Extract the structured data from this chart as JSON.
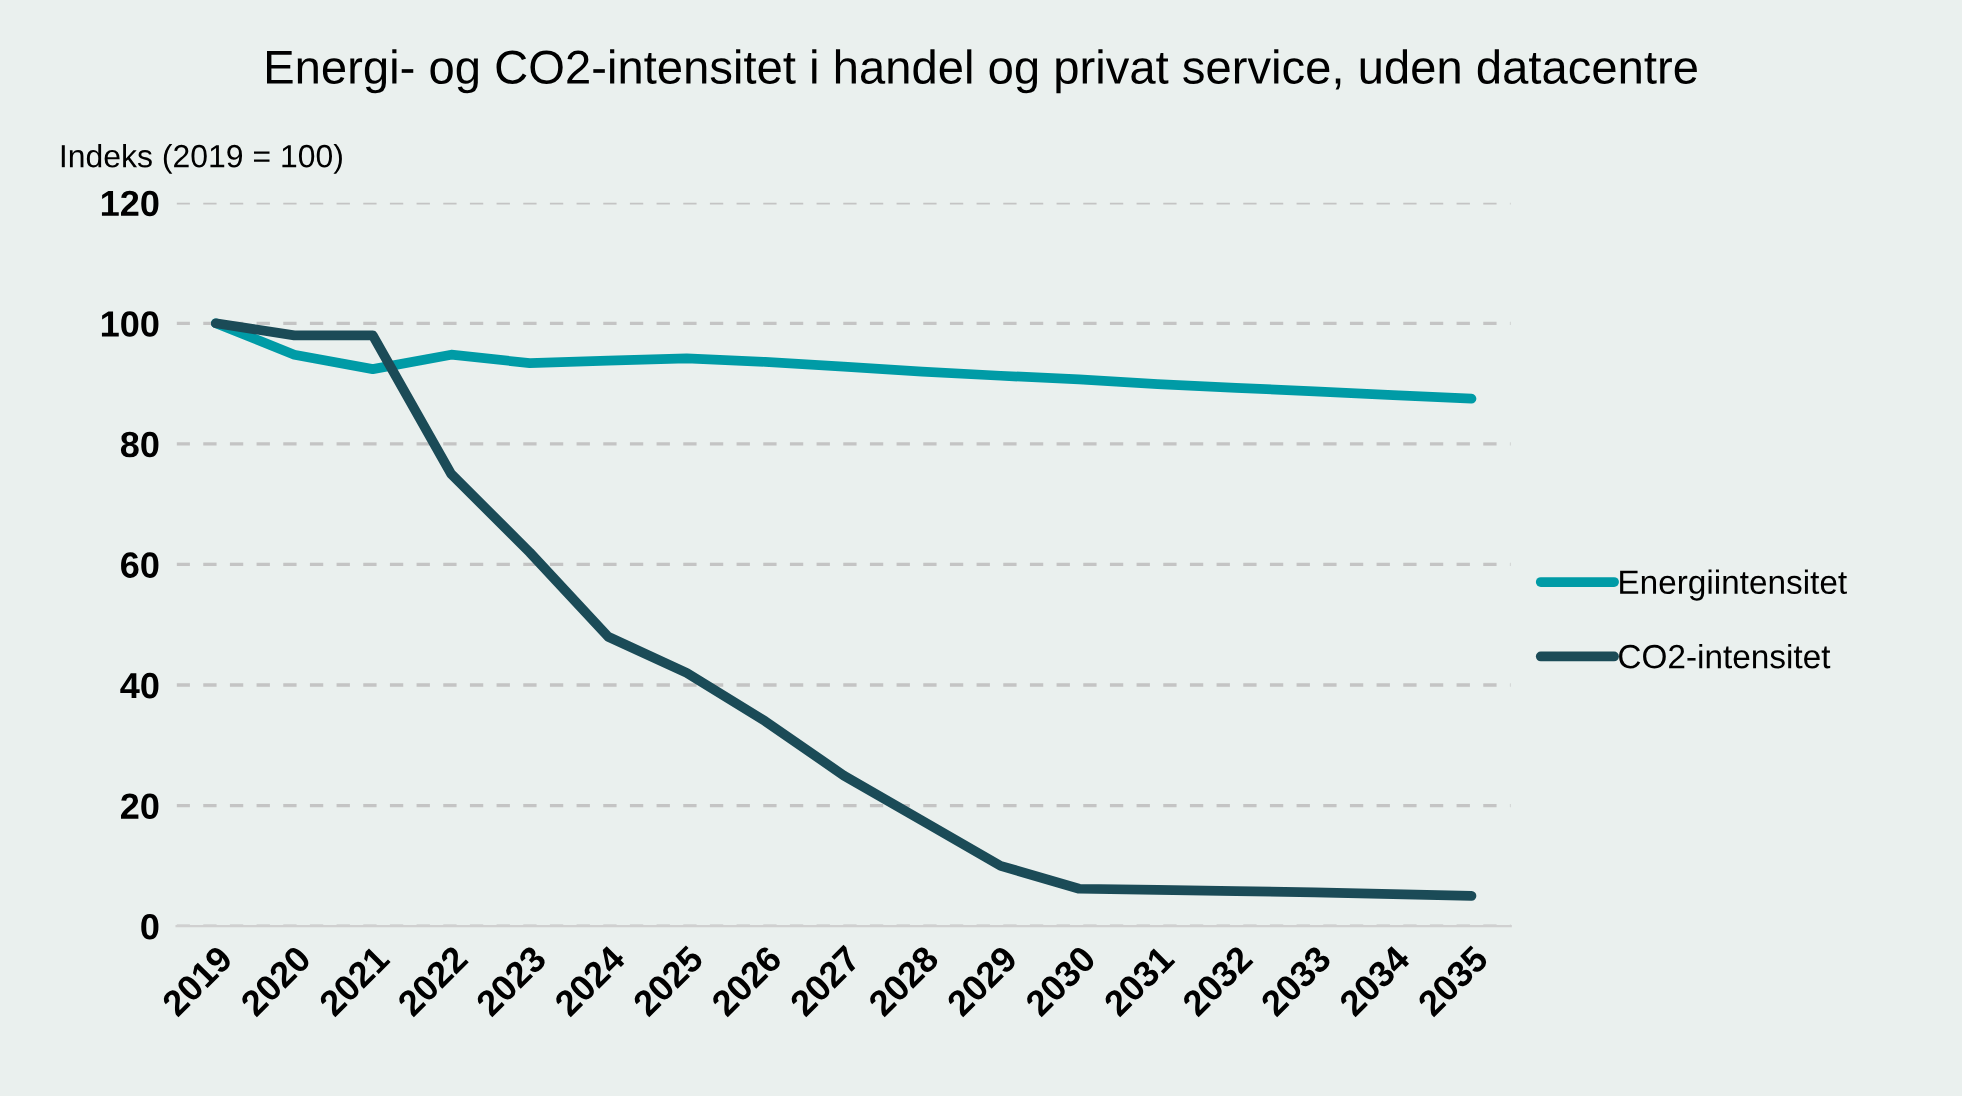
{
  "chart_data": {
    "type": "line",
    "title": "Energi- og CO2-intensitet i handel og privat service, uden datacentre",
    "ylabel": "Indeks (2019 = 100)",
    "categories": [
      "2019",
      "2020",
      "2021",
      "2022",
      "2023",
      "2024",
      "2025",
      "2026",
      "2027",
      "2028",
      "2029",
      "2030",
      "2031",
      "2032",
      "2033",
      "2034",
      "2035"
    ],
    "series": [
      {
        "name": "Energiintensitet",
        "color": "#009ba6",
        "values": [
          100,
          94.8,
          92.4,
          94.8,
          93.4,
          93.8,
          94.2,
          93.6,
          92.8,
          92.0,
          91.3,
          90.7,
          89.9,
          89.3,
          88.7,
          88.1,
          87.5
        ]
      },
      {
        "name": "CO2-intensitet",
        "color": "#1b4b57",
        "values": [
          100,
          98,
          98,
          75,
          62,
          48,
          42,
          34,
          25,
          17.5,
          10,
          6.2,
          6,
          5.8,
          5.6,
          5.3,
          5.0
        ]
      }
    ],
    "ylim": [
      0,
      120
    ],
    "yticks": [
      0,
      20,
      40,
      60,
      80,
      100,
      120
    ],
    "grid": "y",
    "legend": "right",
    "line_style": "solid",
    "marker": "none"
  }
}
